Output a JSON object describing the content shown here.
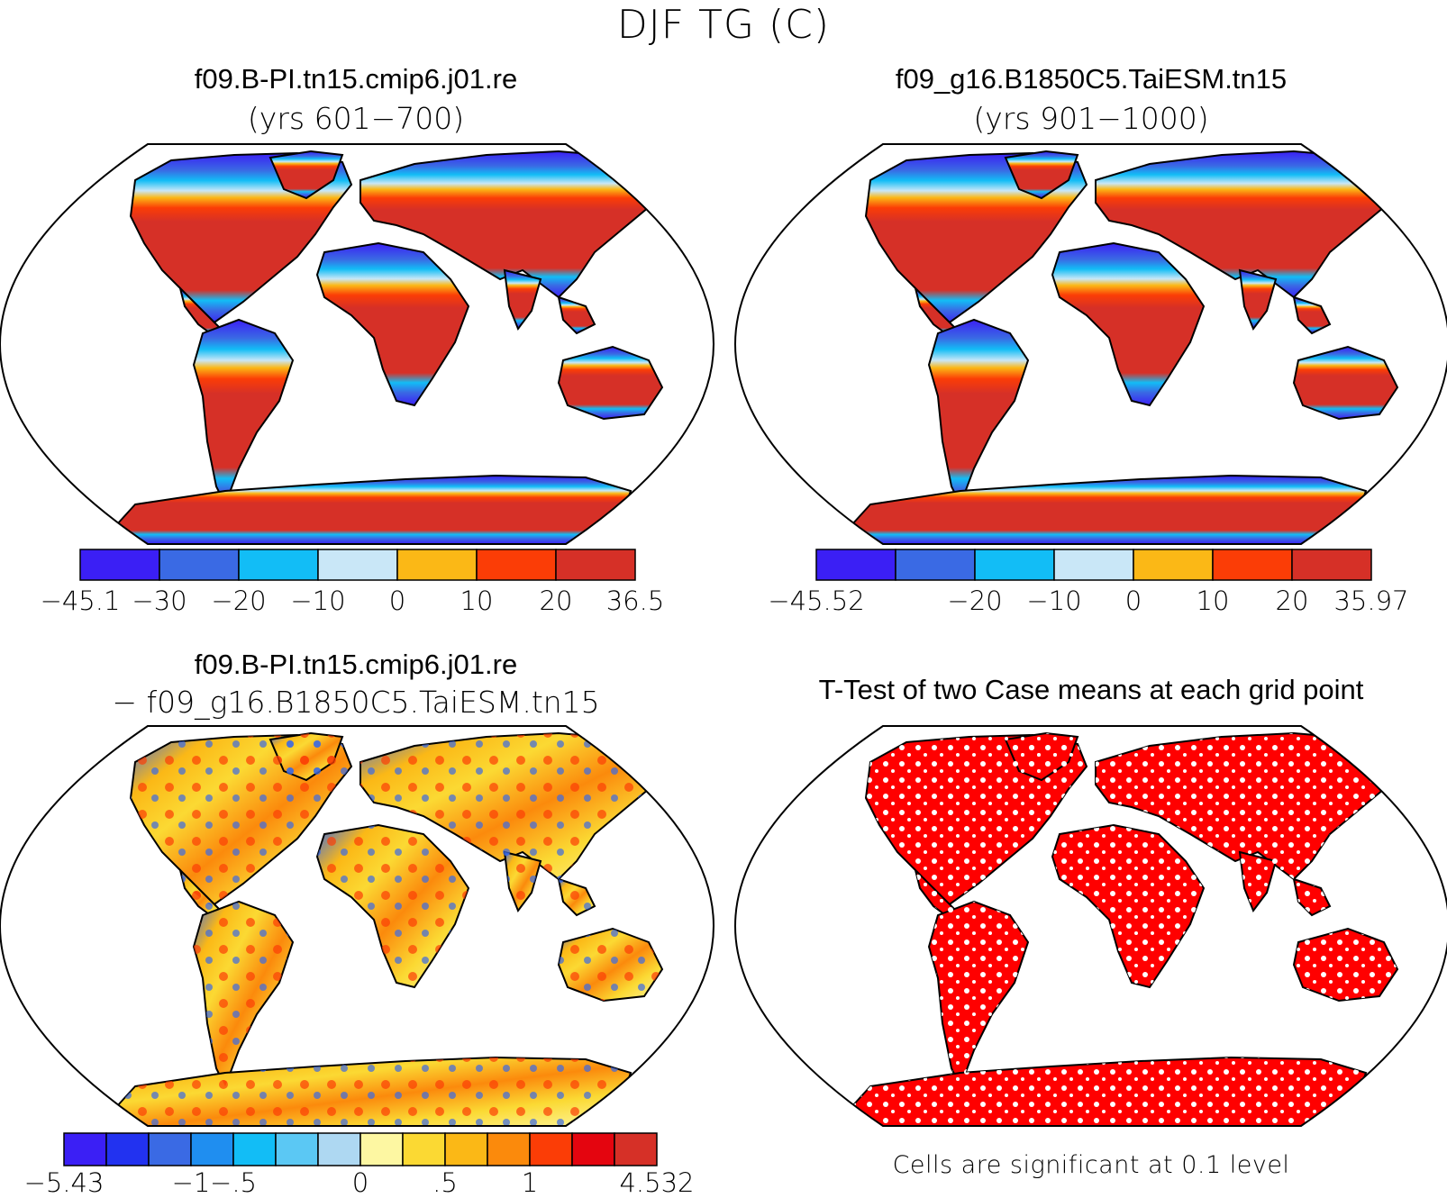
{
  "title": "DJF TG (C)",
  "panels": [
    {
      "id": "case1",
      "title": "f09.B-PI.tn15.cmip6.j01.re",
      "subtitle": "(yrs 601−700)"
    },
    {
      "id": "case2",
      "title": "f09_g16.B1850C5.TaiESM.tn15",
      "subtitle": "(yrs 901−1000)"
    },
    {
      "id": "diff",
      "title": "f09.B-PI.tn15.cmip6.j01.re",
      "subtitle": "− f09_g16.B1850C5.TaiESM.tn15"
    },
    {
      "id": "ttest",
      "title": "T-Test of two Case means at each grid point",
      "subtitle": ""
    }
  ],
  "colorbars": [
    {
      "id": "cb1",
      "colors": [
        "#3b1ff5",
        "#3a6ae4",
        "#12bdf6",
        "#c9e7f7",
        "#fbb816",
        "#fb3d06",
        "#d63027"
      ],
      "labels": [
        "−45.1",
        "−30",
        "−20",
        "−10",
        "0",
        "10",
        "20",
        "36.5"
      ]
    },
    {
      "id": "cb2",
      "colors": [
        "#3b1ff5",
        "#3a6ae4",
        "#12bdf6",
        "#c9e7f7",
        "#fbb816",
        "#fb3d06",
        "#d63027"
      ],
      "labels": [
        "−45.52",
        "",
        "−20",
        "−10",
        "0",
        "10",
        "20",
        "35.97"
      ]
    },
    {
      "id": "cb3",
      "colors": [
        "#3b1ff5",
        "#2232f0",
        "#3a6ae4",
        "#1f8ef0",
        "#12bdf6",
        "#5bc8f4",
        "#aed8f2",
        "#fdf7a2",
        "#fbd933",
        "#fbb816",
        "#fb8a0c",
        "#fb3d06",
        "#e4050f",
        "#d63027"
      ],
      "labels": [
        "−5.43",
        "",
        "",
        "−1",
        "−.5",
        "",
        "",
        "0",
        "",
        ".5",
        "",
        "1",
        "",
        "",
        "4.532"
      ]
    }
  ],
  "legend_colors": {
    "land_outline": "#000000",
    "significant": "#ff0000"
  },
  "footnote": "Cells are significant at 0.1 level"
}
